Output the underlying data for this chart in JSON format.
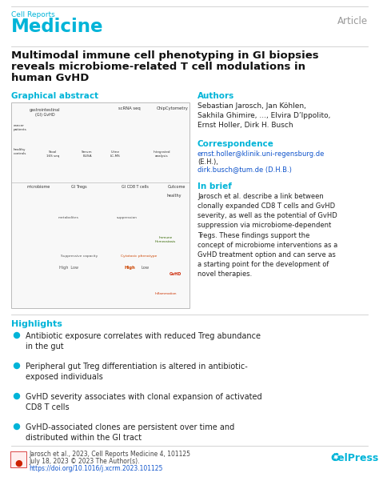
{
  "bg_color": "#ffffff",
  "header_journal_small": "Cell Reports",
  "header_journal_large": "Medicine",
  "header_journal_color": "#00b4d8",
  "article_label": "Article",
  "article_label_color": "#999999",
  "title_line1": "Multimodal immune cell phenotyping in GI biopsies",
  "title_line2": "reveals microbiome-related T cell modulations in",
  "title_line3": "human GvHD",
  "title_color": "#111111",
  "title_fontsize": 9.5,
  "section_color": "#00b4d8",
  "section_graphical_abstract": "Graphical abstract",
  "section_authors": "Authors",
  "section_correspondence": "Correspondence",
  "section_in_brief": "In brief",
  "section_highlights": "Highlights",
  "authors_text": "Sebastian Jarosch, Jan Köhlen,\nSakhila Ghimire, ..., Elvira D’Ippolito,\nErnst Holler, Dirk H. Busch",
  "corr_email1": "ernst.holler@klinik.uni-regensburg.de",
  "corr_line2": "(E.H.),",
  "corr_email2": "dirk.busch@tum.de (D.H.B.)",
  "corr_email_color": "#1155cc",
  "in_brief_text": "Jarosch et al. describe a link between\nclonally expanded CD8 T cells and GvHD\nseverity, as well as the potential of GvHD\nsuppression via microbiome-dependent\nTregs. These findings support the\nconcept of microbiome interventions as a\nGvHD treatment option and can serve as\na starting point for the development of\nnovel therapies.",
  "highlights": [
    "Antibiotic exposure correlates with reduced Treg abundance\nin the gut",
    "Peripheral gut Treg differentiation is altered in antibiotic-\nexposed individuals",
    "GvHD severity associates with clonal expansion of activated\nCD8 T cells",
    "GvHD-associated clones are persistent over time and\ndistributed within the GI tract"
  ],
  "highlight_bullet_color": "#00b4d8",
  "footer_line1": "Jarosch et al., 2023, Cell Reports Medicine 4, 101125",
  "footer_line2": "July 18, 2023 © 2023 The Author(s).",
  "footer_line3": "https://doi.org/10.1016/j.xcrm.2023.101125",
  "footer_text_color": "#444444",
  "footer_link_color": "#1155cc",
  "celpress_text": "CelPress",
  "celpress_color": "#00b4d8",
  "separator_color": "#cccccc",
  "text_color": "#222222",
  "small_text_size": 6.5,
  "body_text_size": 7.0,
  "section_title_size": 7.5,
  "graphical_abstract_inner": "#f8f8f8",
  "graphical_abstract_border": "#bbbbbb"
}
